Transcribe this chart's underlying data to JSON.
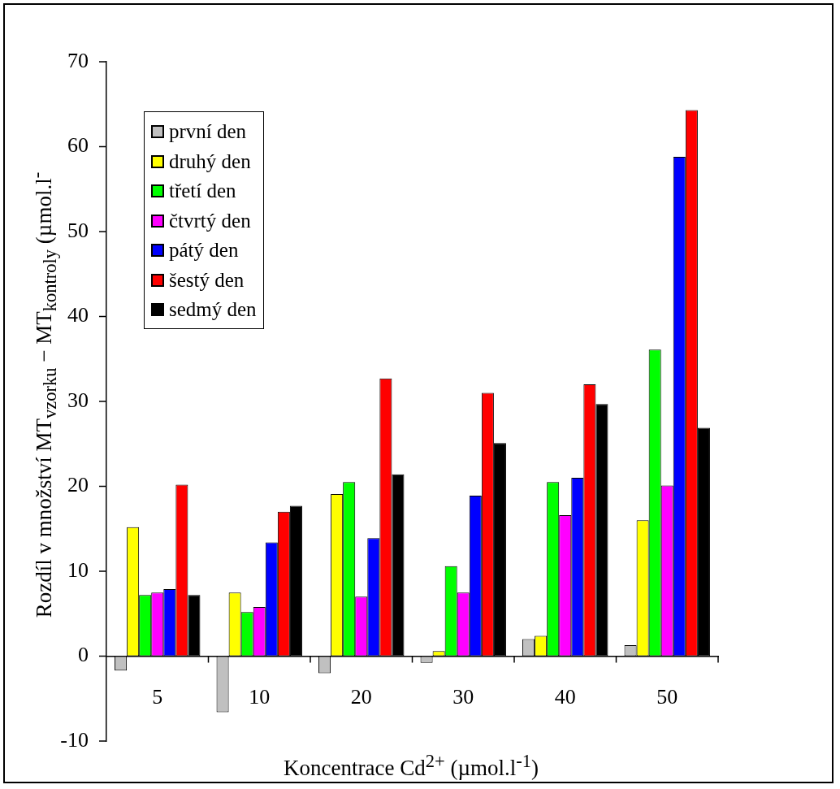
{
  "chart_data": {
    "type": "bar",
    "xlabel": "Koncentrace Cd$^{2+}$ (µmol.l$^{-1}$)",
    "ylabel": "Rozdíl v množství  MT$_{vzorku}$ − MT$_{kontroly}$ (µmol.l$^{-}$",
    "categories": [
      "5",
      "10",
      "20",
      "30",
      "40",
      "50"
    ],
    "series": [
      {
        "name": "první den",
        "color": "#c0c0c0",
        "values": [
          -1.7,
          -6.6,
          -2.0,
          -0.8,
          2.0,
          1.3
        ]
      },
      {
        "name": "druhý den",
        "color": "#ffff00",
        "values": [
          15.2,
          7.5,
          19.1,
          0.6,
          2.4,
          16.0
        ]
      },
      {
        "name": "třetí den",
        "color": "#00ff00",
        "values": [
          7.2,
          5.2,
          20.5,
          10.6,
          20.5,
          36.1
        ]
      },
      {
        "name": "čtvrtý den",
        "color": "#ff00ff",
        "values": [
          7.5,
          5.8,
          7.0,
          7.5,
          16.6,
          20.1
        ]
      },
      {
        "name": "pátý den",
        "color": "#0000ff",
        "values": [
          7.9,
          13.4,
          13.9,
          18.9,
          21.0,
          58.8
        ]
      },
      {
        "name": "šestý den",
        "color": "#ff0000",
        "values": [
          20.2,
          17.0,
          32.7,
          31.0,
          32.0,
          64.3
        ]
      },
      {
        "name": "sedmý den",
        "color": "#000000",
        "values": [
          7.2,
          17.7,
          21.4,
          25.1,
          29.7,
          26.9
        ]
      }
    ],
    "ylim": [
      -10,
      70
    ],
    "yticks": [
      -10,
      0,
      10,
      20,
      30,
      40,
      50,
      60,
      70
    ],
    "grid": false,
    "legend": "top left"
  }
}
